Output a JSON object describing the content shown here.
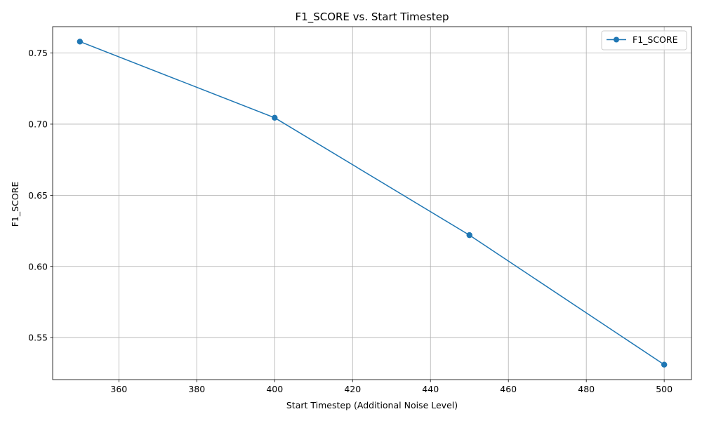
{
  "chart_data": {
    "type": "line",
    "title": "F1_SCORE vs. Start Timestep",
    "xlabel": "Start Timestep (Additional Noise Level)",
    "ylabel": "F1_SCORE",
    "xlim": [
      343,
      507
    ],
    "ylim": [
      0.5205,
      0.7685
    ],
    "xticks": [
      360,
      380,
      400,
      420,
      440,
      460,
      480,
      500
    ],
    "xtick_labels": [
      "360",
      "380",
      "400",
      "420",
      "440",
      "460",
      "480",
      "500"
    ],
    "yticks": [
      0.55,
      0.6,
      0.65,
      0.7,
      0.75
    ],
    "ytick_labels": [
      "0.55",
      "0.60",
      "0.65",
      "0.70",
      "0.75"
    ],
    "grid": true,
    "legend_position": "top-right",
    "series": [
      {
        "name": "F1_SCORE",
        "color": "#1f77b4",
        "marker": "circle",
        "x": [
          350,
          400,
          450,
          500
        ],
        "y": [
          0.758,
          0.7045,
          0.622,
          0.531
        ]
      }
    ]
  }
}
